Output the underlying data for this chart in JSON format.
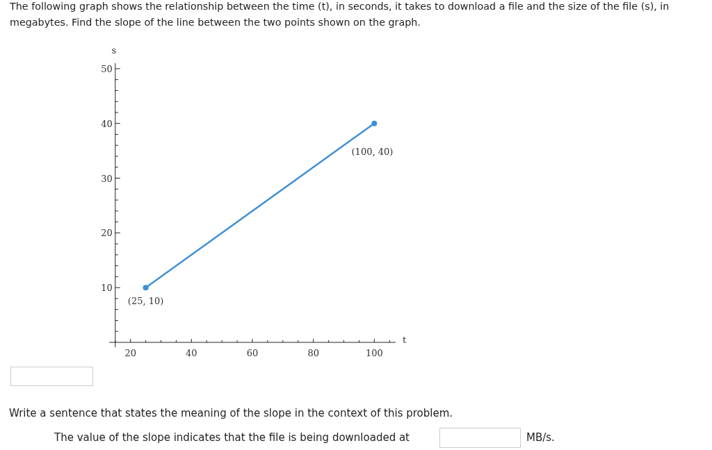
{
  "chart_data": {
    "type": "line",
    "title": "The following graph shows the relationship between the time (t), in seconds, it takes to download a file and the size of the file (s), in megabytes. Find the slope of the line between the two points shown on the graph.",
    "xlabel": "t",
    "ylabel": "s",
    "x": [
      25,
      100
    ],
    "series": [
      {
        "color": "#3d8fd4",
        "values": [
          10,
          40
        ]
      }
    ],
    "marker": "circle",
    "xlim": [
      13,
      107
    ],
    "ylim": [
      0,
      51
    ],
    "xticks": [
      {
        "value": 15,
        "label": null
      },
      {
        "value": 20,
        "label": "20"
      },
      {
        "value": 25,
        "label": null
      },
      {
        "value": 30,
        "label": null
      },
      {
        "value": 35,
        "label": null
      },
      {
        "value": 40,
        "label": "40"
      },
      {
        "value": 45,
        "label": null
      },
      {
        "value": 50,
        "label": null
      },
      {
        "value": 55,
        "label": null
      },
      {
        "value": 60,
        "label": "60"
      },
      {
        "value": 65,
        "label": null
      },
      {
        "value": 70,
        "label": null
      },
      {
        "value": 75,
        "label": null
      },
      {
        "value": 80,
        "label": "80"
      },
      {
        "value": 85,
        "label": null
      },
      {
        "value": 90,
        "label": null
      },
      {
        "value": 95,
        "label": null
      },
      {
        "value": 100,
        "label": "100"
      },
      {
        "value": 105,
        "label": null
      }
    ],
    "yticks": [
      {
        "value": 2,
        "label": null
      },
      {
        "value": 4,
        "label": null
      },
      {
        "value": 6,
        "label": null
      },
      {
        "value": 8,
        "label": null
      },
      {
        "value": 10,
        "label": "10"
      },
      {
        "value": 12,
        "label": null
      },
      {
        "value": 14,
        "label": null
      },
      {
        "value": 16,
        "label": null
      },
      {
        "value": 18,
        "label": null
      },
      {
        "value": 20,
        "label": "20"
      },
      {
        "value": 22,
        "label": null
      },
      {
        "value": 24,
        "label": null
      },
      {
        "value": 26,
        "label": null
      },
      {
        "value": 28,
        "label": null
      },
      {
        "value": 30,
        "label": "30"
      },
      {
        "value": 32,
        "label": null
      },
      {
        "value": 34,
        "label": null
      },
      {
        "value": 36,
        "label": null
      },
      {
        "value": 38,
        "label": null
      },
      {
        "value": 40,
        "label": "40"
      },
      {
        "value": 42,
        "label": null
      },
      {
        "value": 44,
        "label": null
      },
      {
        "value": 46,
        "label": null
      },
      {
        "value": 48,
        "label": null
      },
      {
        "value": 50,
        "label": "50"
      }
    ],
    "grid": false,
    "annotations": [
      {
        "text": "(25, 10)",
        "x": 25,
        "y": 10
      },
      {
        "text": "(100, 40)",
        "x": 100,
        "y": 40
      },
      "Write a sentence that states the meaning of the slope in the context of this problem.",
      "The value of the slope indicates that the file is being downloaded at",
      "MB/s."
    ]
  }
}
